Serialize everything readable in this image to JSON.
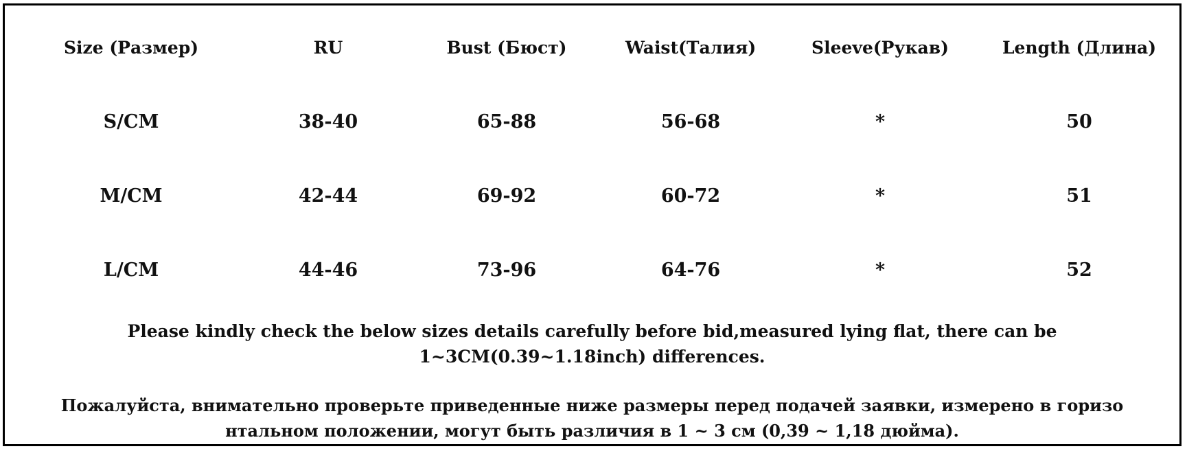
{
  "table": {
    "headers": [
      "Size (Размер)",
      "RU",
      "Bust (Бюст)",
      "Waist(Талия)",
      "Sleeve(Рукав)",
      "Length (Длина)"
    ],
    "rows": [
      [
        "S/CM",
        "38-40",
        "65-88",
        "56-68",
        "*",
        "50"
      ],
      [
        "M/CM",
        "42-44",
        "69-92",
        "60-72",
        "*",
        "51"
      ],
      [
        "L/CM",
        "44-46",
        "73-96",
        "64-76",
        "*",
        "52"
      ]
    ]
  },
  "notes": {
    "english": {
      "line1": "Please kindly check the below sizes details carefully before bid,measured lying flat, there can be",
      "line2": "1~3CM(0.39~1.18inch) differences."
    },
    "russian": {
      "line1": "Пожалуйста, внимательно проверьте приведенные ниже размеры перед подачей заявки, измерено в горизо",
      "line2": "нтальном положении, могут быть различия в 1 ~ 3 см (0,39 ~ 1,18 дюйма)."
    }
  }
}
